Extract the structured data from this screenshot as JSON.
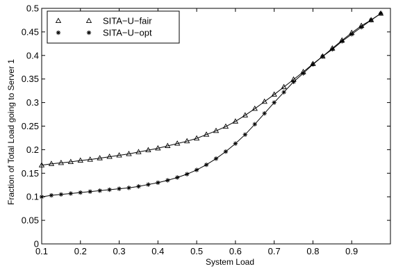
{
  "chart_data": {
    "type": "line",
    "xlabel": "System Load",
    "ylabel": "Fraction of Total Load going to Server 1",
    "xlim": [
      0.1,
      1.0
    ],
    "ylim": [
      0,
      0.5
    ],
    "xticks": [
      "0.1",
      "0.2",
      "0.3",
      "0.4",
      "0.5",
      "0.6",
      "0.7",
      "0.8",
      "0.9"
    ],
    "xtick_values": [
      0.1,
      0.2,
      0.3,
      0.4,
      0.5,
      0.6,
      0.7,
      0.8,
      0.9
    ],
    "yticks": [
      "0",
      "0.05",
      "0.1",
      "0.15",
      "0.2",
      "0.25",
      "0.3",
      "0.35",
      "0.4",
      "0.45",
      "0.5"
    ],
    "ytick_values": [
      0,
      0.05,
      0.1,
      0.15,
      0.2,
      0.25,
      0.3,
      0.35,
      0.4,
      0.45,
      0.5
    ],
    "grid": false,
    "legend_position": "top-left",
    "x": [
      0.1,
      0.125,
      0.15,
      0.175,
      0.2,
      0.225,
      0.25,
      0.275,
      0.3,
      0.325,
      0.35,
      0.375,
      0.4,
      0.425,
      0.45,
      0.475,
      0.5,
      0.525,
      0.55,
      0.575,
      0.6,
      0.625,
      0.65,
      0.675,
      0.7,
      0.725,
      0.75,
      0.775,
      0.8,
      0.825,
      0.85,
      0.875,
      0.9,
      0.925,
      0.95,
      0.975
    ],
    "series": [
      {
        "name": "SITA−U−fair",
        "marker": "triangle",
        "color": "#000000",
        "values": [
          0.167,
          0.17,
          0.172,
          0.174,
          0.177,
          0.179,
          0.182,
          0.185,
          0.188,
          0.191,
          0.195,
          0.199,
          0.203,
          0.208,
          0.213,
          0.218,
          0.224,
          0.232,
          0.24,
          0.249,
          0.26,
          0.273,
          0.287,
          0.302,
          0.317,
          0.333,
          0.349,
          0.365,
          0.382,
          0.398,
          0.415,
          0.432,
          0.448,
          0.463,
          0.475,
          0.489
        ]
      },
      {
        "name": "SITA−U−opt",
        "marker": "star",
        "color": "#000000",
        "values": [
          0.1,
          0.103,
          0.105,
          0.107,
          0.109,
          0.111,
          0.113,
          0.115,
          0.117,
          0.119,
          0.122,
          0.126,
          0.13,
          0.135,
          0.141,
          0.148,
          0.157,
          0.168,
          0.181,
          0.196,
          0.213,
          0.232,
          0.254,
          0.277,
          0.3,
          0.322,
          0.344,
          0.362,
          0.381,
          0.398,
          0.413,
          0.43,
          0.445,
          0.46,
          0.475,
          0.489
        ]
      }
    ]
  }
}
